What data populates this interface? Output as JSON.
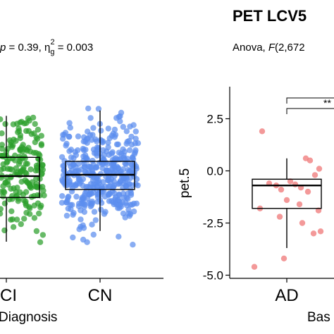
{
  "chart_data": [
    {
      "type": "scatter",
      "subtype": "box-jitter",
      "stat_label": {
        "p_prefix": "p",
        "p_text": " = 0.39, η",
        "sub": "g",
        "sup": "2",
        "tail": " = 0.003"
      },
      "categories": [
        "MCI",
        "CN"
      ],
      "visible_category_labels": [
        "CI",
        "CN"
      ],
      "xlabel": "Diagnosis",
      "series": [
        {
          "category": "MCI",
          "color": "#2ca02c",
          "box": {
            "q1": -0.85,
            "median": -0.05,
            "q3": 0.65,
            "whisker_low": -2.5,
            "whisker_high": 2.2
          },
          "points_range": [
            -2.7,
            2.2
          ]
        },
        {
          "category": "CN",
          "color": "#5b8def",
          "box": {
            "q1": -0.55,
            "median": 0.0,
            "q3": 0.5,
            "whisker_low": -2.1,
            "whisker_high": 2.4
          },
          "points_range": [
            -3.5,
            2.5
          ]
        }
      ]
    },
    {
      "type": "scatter",
      "subtype": "box-jitter",
      "title": "PET LCV5",
      "stat_label": {
        "prefix": "Anova, ",
        "F": "F",
        "rest": "(2,672"
      },
      "ylabel": "pet.5",
      "xlabel": "Bas",
      "y_ticks": [
        2.5,
        0.0,
        -2.5,
        -5.0
      ],
      "y_tick_labels": [
        "2.5",
        "0.0",
        "-2.5",
        "-5.0"
      ],
      "ylim": [
        -5.2,
        4.8
      ],
      "categories": [
        "AD"
      ],
      "significance": "**",
      "series": [
        {
          "category": "AD",
          "color": "#f08080",
          "box": {
            "q1": -1.8,
            "median": -0.7,
            "q3": -0.4,
            "whisker_low": -3.7,
            "whisker_high": 0.6
          },
          "points": [
            1.9,
            -0.5,
            -0.6,
            -0.65,
            -0.7,
            -0.8,
            -0.9,
            -1.0,
            -0.2,
            0.6,
            0.5,
            0.1,
            -1.4,
            -1.6,
            -1.8,
            -2.2,
            -2.5,
            -2.9,
            -3.0,
            -4.6,
            -4.2,
            -1.9
          ]
        }
      ]
    }
  ]
}
